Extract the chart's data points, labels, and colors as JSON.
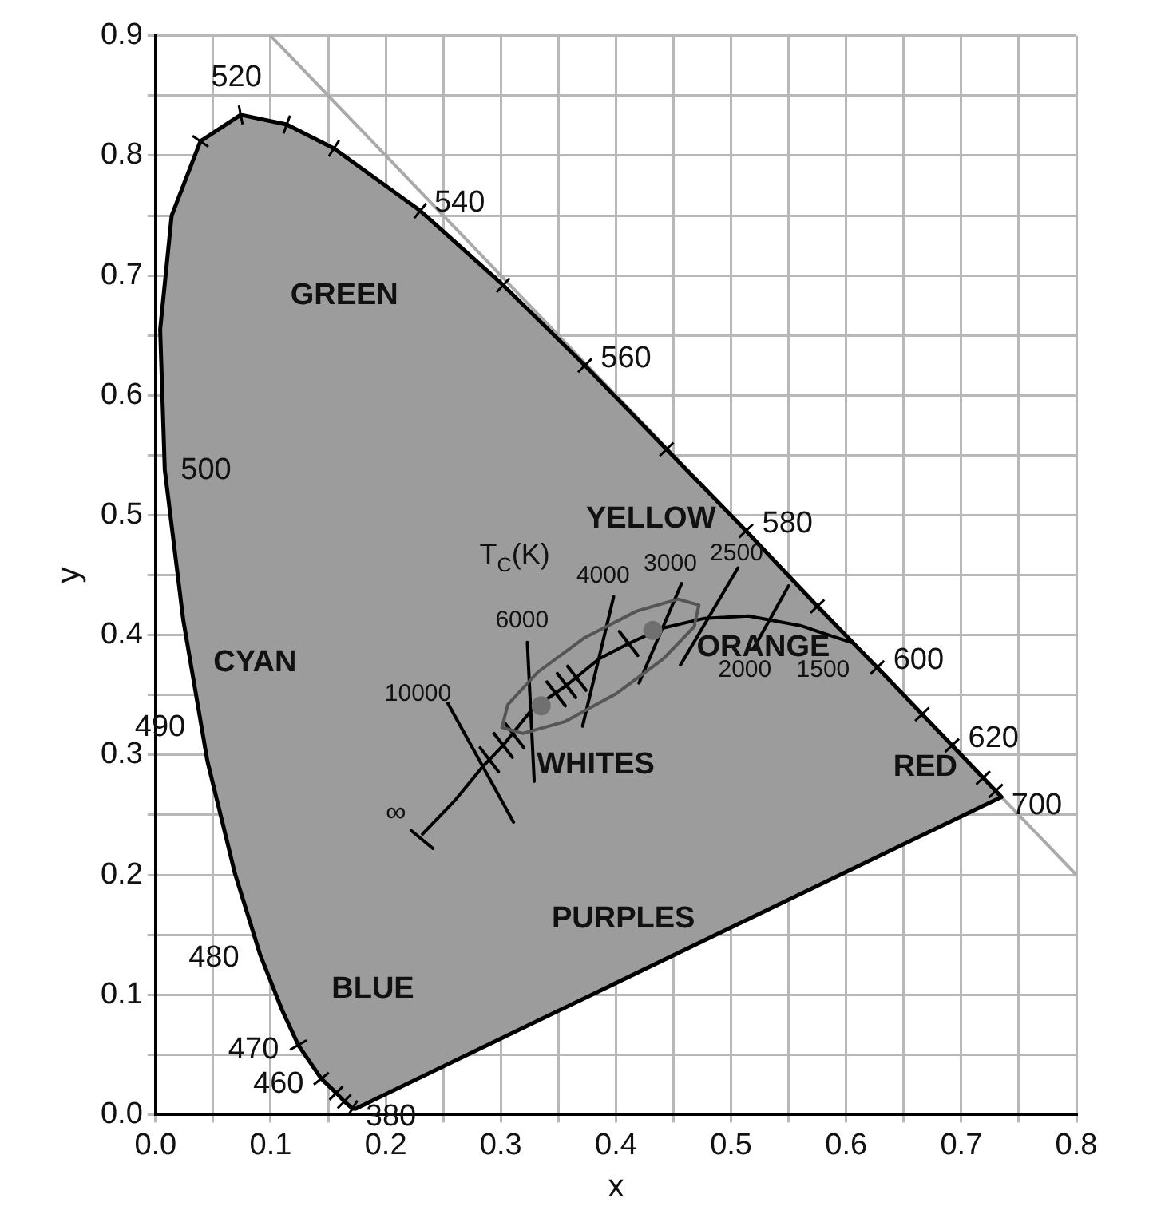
{
  "chart_data": {
    "type": "line",
    "xlabel": "x",
    "ylabel": "y",
    "xlim": [
      0,
      0.8
    ],
    "ylim": [
      0,
      0.9
    ],
    "xticks": [
      {
        "value": 0,
        "label": "0.0"
      },
      {
        "value": 0.05,
        "label": null
      },
      {
        "value": 0.1,
        "label": "0.1"
      },
      {
        "value": 0.15,
        "label": null
      },
      {
        "value": 0.2,
        "label": "0.2"
      },
      {
        "value": 0.25,
        "label": null
      },
      {
        "value": 0.3,
        "label": "0.3"
      },
      {
        "value": 0.35,
        "label": null
      },
      {
        "value": 0.4,
        "label": "0.4"
      },
      {
        "value": 0.45,
        "label": null
      },
      {
        "value": 0.5,
        "label": "0.5"
      },
      {
        "value": 0.55,
        "label": null
      },
      {
        "value": 0.6,
        "label": "0.6"
      },
      {
        "value": 0.65,
        "label": null
      },
      {
        "value": 0.7,
        "label": "0.7"
      },
      {
        "value": 0.75,
        "label": null
      },
      {
        "value": 0.8,
        "label": "0.8"
      }
    ],
    "yticks": [
      {
        "value": 0,
        "label": "0.0"
      },
      {
        "value": 0.05,
        "label": null
      },
      {
        "value": 0.1,
        "label": "0.1"
      },
      {
        "value": 0.15,
        "label": null
      },
      {
        "value": 0.2,
        "label": "0.2"
      },
      {
        "value": 0.25,
        "label": null
      },
      {
        "value": 0.3,
        "label": "0.3"
      },
      {
        "value": 0.35,
        "label": null
      },
      {
        "value": 0.4,
        "label": "0.4"
      },
      {
        "value": 0.45,
        "label": null
      },
      {
        "value": 0.5,
        "label": "0.5"
      },
      {
        "value": 0.55,
        "label": null
      },
      {
        "value": 0.6,
        "label": "0.6"
      },
      {
        "value": 0.65,
        "label": null
      },
      {
        "value": 0.7,
        "label": "0.7"
      },
      {
        "value": 0.75,
        "label": null
      },
      {
        "value": 0.8,
        "label": "0.8"
      },
      {
        "value": 0.85,
        "label": null
      },
      {
        "value": 0.9,
        "label": "0.9"
      }
    ],
    "grid": true,
    "legend": false,
    "line_style": "solid",
    "series": [
      {
        "color": "#aaaaaa",
        "x": [
          0.1,
          0.8
        ],
        "values": [
          0.9,
          0.2
        ]
      },
      {
        "type": "area",
        "color": "#000000",
        "x": [
          0.174,
          0.171,
          0.164,
          0.157,
          0.144,
          0.124,
          0.11,
          0.091,
          0.069,
          0.045,
          0.024,
          0.008,
          0.004,
          0.014,
          0.039,
          0.074,
          0.114,
          0.155,
          0.23,
          0.302,
          0.373,
          0.444,
          0.513,
          0.575,
          0.627,
          0.666,
          0.692,
          0.719,
          0.73,
          0.735,
          0.174
        ],
        "values": [
          0.005,
          0.005,
          0.011,
          0.018,
          0.03,
          0.058,
          0.087,
          0.133,
          0.201,
          0.295,
          0.413,
          0.538,
          0.655,
          0.75,
          0.812,
          0.834,
          0.826,
          0.806,
          0.754,
          0.692,
          0.625,
          0.555,
          0.487,
          0.424,
          0.373,
          0.334,
          0.308,
          0.281,
          0.27,
          0.265,
          0.005
        ]
      },
      {
        "color": "#000000",
        "x": [
          0.232,
          0.26,
          0.284,
          0.302,
          0.327,
          0.357,
          0.385,
          0.411,
          0.441,
          0.477,
          0.515,
          0.56,
          0.604
        ],
        "values": [
          0.234,
          0.262,
          0.29,
          0.308,
          0.338,
          0.358,
          0.38,
          0.393,
          0.406,
          0.414,
          0.416,
          0.408,
          0.394
        ]
      },
      {
        "color": "#000000",
        "x": [
          0.222,
          0.241
        ],
        "values": [
          0.237,
          0.222
        ]
      },
      {
        "color": "#000000",
        "x": [
          0.254,
          0.311
        ],
        "values": [
          0.343,
          0.244
        ]
      },
      {
        "color": "#000000",
        "x": [
          0.323,
          0.329
        ],
        "values": [
          0.394,
          0.278
        ]
      },
      {
        "color": "#000000",
        "x": [
          0.398,
          0.371
        ],
        "values": [
          0.432,
          0.324
        ]
      },
      {
        "color": "#000000",
        "x": [
          0.457,
          0.42
        ],
        "values": [
          0.443,
          0.36
        ]
      },
      {
        "color": "#000000",
        "x": [
          0.506,
          0.456
        ],
        "values": [
          0.456,
          0.375
        ]
      },
      {
        "color": "#000000",
        "x": [
          0.55,
          0.519
        ],
        "values": [
          0.441,
          0.388
        ]
      },
      {
        "color": "#000000",
        "x": [
          0.298,
          0.282
        ],
        "values": [
          0.286,
          0.306
        ]
      },
      {
        "color": "#000000",
        "x": [
          0.31,
          0.294
        ],
        "values": [
          0.298,
          0.318
        ]
      },
      {
        "color": "#000000",
        "x": [
          0.32,
          0.304
        ],
        "values": [
          0.306,
          0.326
        ]
      },
      {
        "color": "#000000",
        "x": [
          0.356,
          0.34
        ],
        "values": [
          0.341,
          0.361
        ]
      },
      {
        "color": "#000000",
        "x": [
          0.365,
          0.349
        ],
        "values": [
          0.348,
          0.368
        ]
      },
      {
        "color": "#000000",
        "x": [
          0.374,
          0.358
        ],
        "values": [
          0.354,
          0.374
        ]
      },
      {
        "color": "#000000",
        "x": [
          0.419,
          0.403
        ],
        "values": [
          0.383,
          0.403
        ]
      },
      {
        "color": "#555555",
        "x": [
          0.301,
          0.306,
          0.332,
          0.373,
          0.418,
          0.454,
          0.472
        ],
        "values": [
          0.323,
          0.342,
          0.369,
          0.398,
          0.42,
          0.43,
          0.425
        ]
      },
      {
        "color": "#555555",
        "x": [
          0.301,
          0.319,
          0.356,
          0.4,
          0.441,
          0.468,
          0.472
        ],
        "values": [
          0.323,
          0.318,
          0.328,
          0.351,
          0.38,
          0.407,
          0.425
        ]
      },
      {
        "type": "scatter",
        "color": "#707070",
        "marker": "circle",
        "x": [
          0.335,
          0.432
        ],
        "values": [
          0.341,
          0.404
        ]
      }
    ],
    "annotations": [
      {
        "text": "520",
        "x": 0.074,
        "y": 0.834
      },
      {
        "text": "540",
        "x": 0.23,
        "y": 0.754
      },
      {
        "text": "560",
        "x": 0.373,
        "y": 0.625
      },
      {
        "text": "580",
        "x": 0.513,
        "y": 0.487
      },
      {
        "text": "600",
        "x": 0.627,
        "y": 0.373
      },
      {
        "text": "620",
        "x": 0.692,
        "y": 0.308
      },
      {
        "text": "700",
        "x": 0.735,
        "y": 0.265
      },
      {
        "text": "500",
        "x": 0.008,
        "y": 0.538
      },
      {
        "text": "490",
        "x": 0.045,
        "y": 0.295
      },
      {
        "text": "480",
        "x": 0.091,
        "y": 0.133
      },
      {
        "text": "470",
        "x": 0.124,
        "y": 0.058
      },
      {
        "text": "460",
        "x": 0.144,
        "y": 0.03
      },
      {
        "text": "380",
        "x": 0.174,
        "y": 0.005
      },
      "GREEN",
      "CYAN",
      "BLUE",
      "PURPLES",
      "WHITES",
      "YELLOW",
      "ORANGE",
      "RED",
      "T$_{C}$(K)",
      "10000",
      "6000",
      "4000",
      "3000",
      "2500",
      "2000",
      "1500",
      "∞"
    ]
  }
}
